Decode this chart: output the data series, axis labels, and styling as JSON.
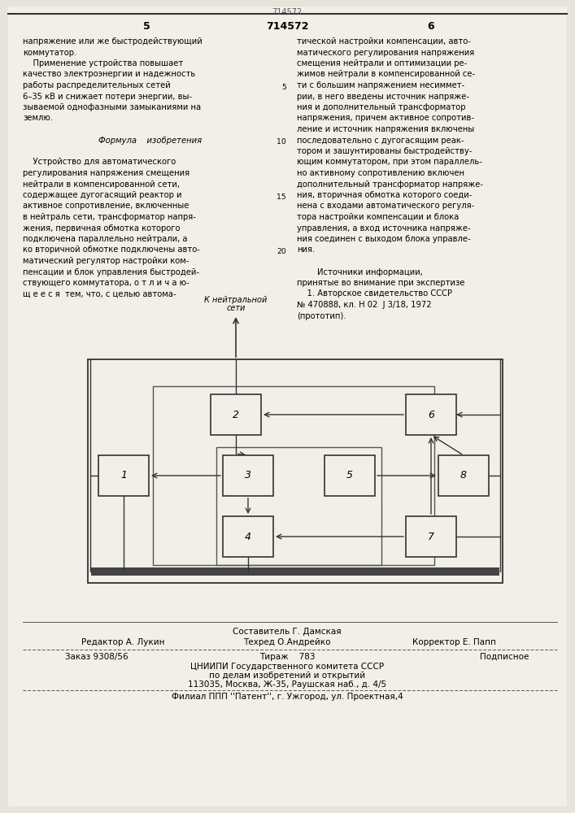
{
  "bg_color": "#e8e4dc",
  "page_color": "#f2efe8",
  "title_number": "714572",
  "col1_text": [
    "напряжение или же быстродействующий",
    "коммутатор.",
    "    Применение устройства повышает",
    "качество электроэнергии и надежность",
    "работы распределительных сетей",
    "6–35 кВ и снижает потери энергии, вы-",
    "зываемой однофазными замыканиями на",
    "землю.",
    "",
    "           Формула    изобретения",
    "",
    "    Устройство для автоматического",
    "регулирования напряжения смещения",
    "нейтрали в компенсированной сети,",
    "содержащее дугогасящий реактор и",
    "активное сопротивление, включенные",
    "в нейтраль сети, трансформатор напря-",
    "жения, первичная обмотка которого",
    "подключена параллельно нейтрали, а",
    "ко вторичной обмотке подключены авто-",
    "матический регулятор настройки ком-",
    "пенсации и блок управления быстродей-",
    "ствующего коммутатора, о т л и ч а ю-",
    "щ е е с я  тем, что, с целью автома-"
  ],
  "col2_text": [
    "тической настройки компенсации, авто-",
    "матического регулирования напряжения",
    "смещения нейтрали и оптимизации ре-",
    "жимов нейтрали в компенсированной се-",
    "ти с большим напряжением несиммет-",
    "рии, в него введены источник напряже-",
    "ния и дополнительный трансформатор",
    "напряжения, причем активное сопротив-",
    "ление и источник напряжения включены",
    "последовательно с дугогасящим реак-",
    "тором и зашунтированы быстродейству-",
    "ющим коммутатором, при этом параллель-",
    "но активному сопротивлению включен",
    "дополнительный трансформатор напряже-",
    "ния, вторичная обмотка которого соеди-",
    "нена с входами автоматического регуля-",
    "тора настройки компенсации и блока",
    "управления, а вход источника напряже-",
    "ния соединен с выходом блока управле-",
    "ния.",
    "",
    "        Источники информации,",
    "принятые во внимание при экспертизе",
    "    1. Авторское свидетельство СССР",
    "№ 470888, кл. Н 02  J 3/18, 1972",
    "(прототип)."
  ],
  "line_num_rows": {
    "4": "5",
    "9": "10",
    "14": "15",
    "19": "20"
  },
  "footer_line1": "Составитель Г. Дамская",
  "footer_line2_left": "Редактор А. Лукин",
  "footer_line2_center": "Техред О.Андрейко",
  "footer_line2_right": "Корректор Е. Папп",
  "footer_line3_left": "Заказ 9308/56",
  "footer_line3_center": "Тираж    783",
  "footer_line3_right": "Подписное",
  "footer_line4": "ЦНИИПИ Государственного комитета СССР",
  "footer_line5": "по делам изобретений и открытий",
  "footer_line6": "113035, Москва, Ж-35, Раушская наб., д. 4/5",
  "footer_line7": "Филиал ППП ''Патент'', г. Ужгород, ул. Проектная,4"
}
